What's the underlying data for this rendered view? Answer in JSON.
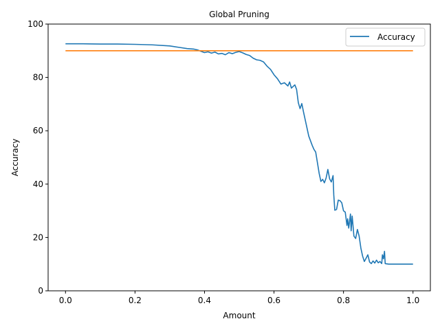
{
  "chart_data": {
    "type": "line",
    "title": "Global Pruning",
    "xlabel": "Amount",
    "ylabel": "Accuracy",
    "xlim": [
      -0.05,
      1.05
    ],
    "ylim": [
      0,
      100
    ],
    "xticks": [
      0.0,
      0.2,
      0.4,
      0.6,
      0.8,
      1.0
    ],
    "xtick_labels": [
      "0.0",
      "0.2",
      "0.4",
      "0.6",
      "0.8",
      "1.0"
    ],
    "yticks": [
      0,
      20,
      40,
      60,
      80,
      100
    ],
    "ytick_labels": [
      "0",
      "20",
      "40",
      "60",
      "80",
      "100"
    ],
    "grid": false,
    "legend": {
      "placement": "top-right",
      "entries": [
        "Accuracy"
      ]
    },
    "series": [
      {
        "name": "Accuracy",
        "color": "#1f77b4",
        "points": [
          [
            0.0,
            92.6
          ],
          [
            0.05,
            92.6
          ],
          [
            0.1,
            92.5
          ],
          [
            0.15,
            92.5
          ],
          [
            0.2,
            92.4
          ],
          [
            0.25,
            92.2
          ],
          [
            0.3,
            91.8
          ],
          [
            0.33,
            91.2
          ],
          [
            0.35,
            90.8
          ],
          [
            0.37,
            90.6
          ],
          [
            0.38,
            90.3
          ],
          [
            0.39,
            89.8
          ],
          [
            0.4,
            89.3
          ],
          [
            0.41,
            89.6
          ],
          [
            0.42,
            89.1
          ],
          [
            0.43,
            89.5
          ],
          [
            0.44,
            88.8
          ],
          [
            0.45,
            89.0
          ],
          [
            0.46,
            88.5
          ],
          [
            0.47,
            89.3
          ],
          [
            0.48,
            88.9
          ],
          [
            0.49,
            89.4
          ],
          [
            0.5,
            89.7
          ],
          [
            0.51,
            89.2
          ],
          [
            0.52,
            88.6
          ],
          [
            0.53,
            88.2
          ],
          [
            0.54,
            87.2
          ],
          [
            0.55,
            86.6
          ],
          [
            0.56,
            86.4
          ],
          [
            0.57,
            85.8
          ],
          [
            0.58,
            84.2
          ],
          [
            0.59,
            83.0
          ],
          [
            0.6,
            81.0
          ],
          [
            0.61,
            79.5
          ],
          [
            0.62,
            77.5
          ],
          [
            0.63,
            78.0
          ],
          [
            0.64,
            76.8
          ],
          [
            0.645,
            78.3
          ],
          [
            0.65,
            76.0
          ],
          [
            0.66,
            77.2
          ],
          [
            0.665,
            75.5
          ],
          [
            0.67,
            70.5
          ],
          [
            0.675,
            68.3
          ],
          [
            0.68,
            70.2
          ],
          [
            0.685,
            67.0
          ],
          [
            0.69,
            64.0
          ],
          [
            0.7,
            58.0
          ],
          [
            0.71,
            54.5
          ],
          [
            0.715,
            53.0
          ],
          [
            0.72,
            52.0
          ],
          [
            0.725,
            48.0
          ],
          [
            0.73,
            44.0
          ],
          [
            0.735,
            41.0
          ],
          [
            0.74,
            41.8
          ],
          [
            0.745,
            40.5
          ],
          [
            0.75,
            42.3
          ],
          [
            0.755,
            45.5
          ],
          [
            0.76,
            42.0
          ],
          [
            0.765,
            40.8
          ],
          [
            0.77,
            43.2
          ],
          [
            0.772,
            36.0
          ],
          [
            0.775,
            30.2
          ],
          [
            0.78,
            30.5
          ],
          [
            0.785,
            34.0
          ],
          [
            0.79,
            33.8
          ],
          [
            0.795,
            33.0
          ],
          [
            0.8,
            30.0
          ],
          [
            0.805,
            29.5
          ],
          [
            0.81,
            24.5
          ],
          [
            0.812,
            27.0
          ],
          [
            0.815,
            23.5
          ],
          [
            0.82,
            28.8
          ],
          [
            0.822,
            22.5
          ],
          [
            0.825,
            28.0
          ],
          [
            0.83,
            20.5
          ],
          [
            0.835,
            19.6
          ],
          [
            0.84,
            23.0
          ],
          [
            0.845,
            20.5
          ],
          [
            0.85,
            16.0
          ],
          [
            0.855,
            13.0
          ],
          [
            0.86,
            11.0
          ],
          [
            0.865,
            12.2
          ],
          [
            0.87,
            13.5
          ],
          [
            0.875,
            10.8
          ],
          [
            0.88,
            10.2
          ],
          [
            0.885,
            11.2
          ],
          [
            0.89,
            10.4
          ],
          [
            0.895,
            11.5
          ],
          [
            0.9,
            10.5
          ],
          [
            0.905,
            11.0
          ],
          [
            0.91,
            10.2
          ],
          [
            0.912,
            13.5
          ],
          [
            0.915,
            12.0
          ],
          [
            0.918,
            14.8
          ],
          [
            0.92,
            10.2
          ],
          [
            0.93,
            10.0
          ],
          [
            0.95,
            10.0
          ],
          [
            1.0,
            10.0
          ]
        ]
      },
      {
        "name": "",
        "color": "#ff7f0e",
        "points": [
          [
            0.0,
            90.0
          ],
          [
            1.0,
            90.0
          ]
        ]
      }
    ]
  }
}
